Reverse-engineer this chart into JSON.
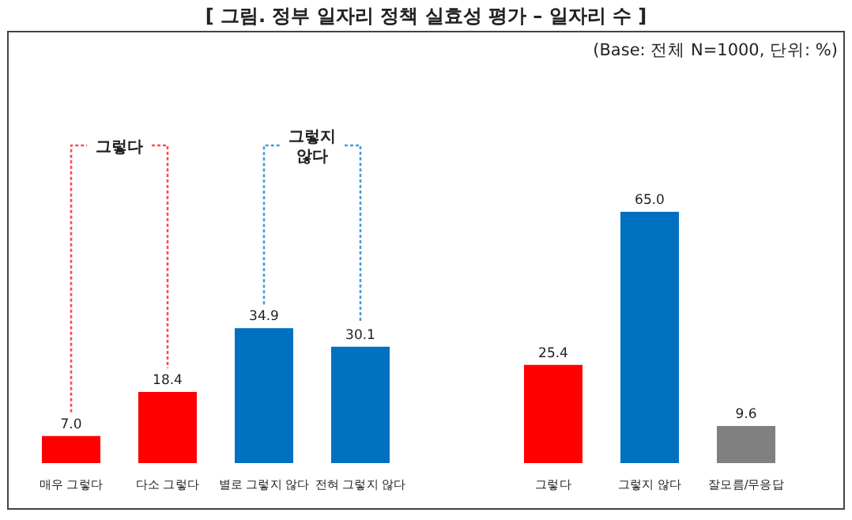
{
  "chart_data": {
    "type": "bar",
    "title": "[ 그림. 정부 일자리 정책 실효성 평가 – 일자리 수 ]",
    "subtitle": "(Base: 전체 N=1000, 단위: %)",
    "categories": [
      "매우 그렇다",
      "다소 그렇다",
      "별로 그렇지 않다",
      "전혀 그렇지 않다",
      null,
      "그렇다",
      "그렇지 않다",
      "잘모름/무응답"
    ],
    "values": [
      7.0,
      18.4,
      34.9,
      30.1,
      null,
      25.4,
      65.0,
      9.6
    ],
    "colors": [
      "#ff0000",
      "#ff0000",
      "#0070c0",
      "#0070c0",
      null,
      "#ff0000",
      "#0070c0",
      "#808080"
    ],
    "value_labels": [
      "7.0",
      "18.4",
      "34.9",
      "30.1",
      null,
      "25.4",
      "65.0",
      "9.6"
    ],
    "annotations": [
      "그렇다",
      "그렇지\n않다"
    ]
  }
}
